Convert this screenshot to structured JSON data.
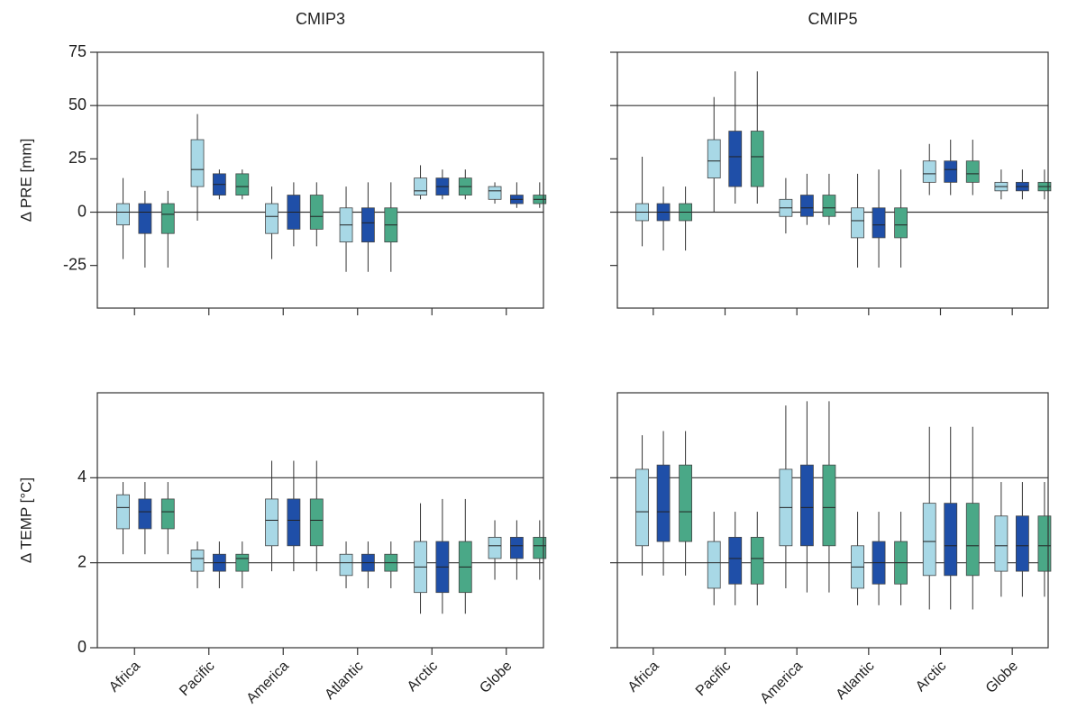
{
  "chart_data": [
    {
      "type": "box",
      "title": "CMIP3",
      "ylabel": "Δ PRE [mm]",
      "categories": [
        null,
        null,
        null,
        null,
        null,
        null
      ],
      "ylim": [
        -45,
        75
      ],
      "yticks": [
        75,
        50,
        25,
        0,
        -25
      ],
      "show_ytick_labels": true,
      "hlines": [
        50,
        0
      ],
      "series": [
        {
          "color": "#a8d8e6",
          "low": [
            -22,
            -4,
            -22,
            -28,
            6,
            4
          ],
          "q1": [
            -6,
            12,
            -10,
            -14,
            8,
            6
          ],
          "median": [
            0,
            20,
            -2,
            -6,
            10,
            10
          ],
          "q3": [
            4,
            34,
            4,
            2,
            16,
            12
          ],
          "high": [
            16,
            46,
            12,
            12,
            22,
            14
          ]
        },
        {
          "color": "#1f4fa8",
          "low": [
            -26,
            6,
            -16,
            -28,
            6,
            2
          ],
          "q1": [
            -10,
            8,
            -8,
            -14,
            8,
            4
          ],
          "median": [
            0,
            13,
            0,
            -5,
            12,
            6
          ],
          "q3": [
            4,
            18,
            8,
            2,
            16,
            8
          ],
          "high": [
            10,
            20,
            14,
            14,
            20,
            14
          ]
        },
        {
          "color": "#4aa887",
          "low": [
            -26,
            6,
            -16,
            -28,
            6,
            2
          ],
          "q1": [
            -10,
            8,
            -8,
            -14,
            8,
            4
          ],
          "median": [
            -1,
            12,
            -2,
            -6,
            12,
            6
          ],
          "q3": [
            4,
            18,
            8,
            2,
            16,
            8
          ],
          "high": [
            10,
            20,
            14,
            14,
            20,
            14
          ]
        }
      ]
    },
    {
      "type": "box",
      "title": "CMIP5",
      "categories": [
        null,
        null,
        null,
        null,
        null,
        null
      ],
      "ylim": [
        -45,
        75
      ],
      "yticks": [
        75,
        50,
        25,
        0,
        -25
      ],
      "show_ytick_labels": false,
      "hlines": [
        50,
        0
      ],
      "series": [
        {
          "color": "#a8d8e6",
          "low": [
            -16,
            0,
            -10,
            -26,
            8,
            6
          ],
          "q1": [
            -4,
            16,
            -2,
            -12,
            14,
            10
          ],
          "median": [
            0,
            24,
            2,
            -4,
            18,
            12
          ],
          "q3": [
            4,
            34,
            6,
            2,
            24,
            14
          ],
          "high": [
            26,
            54,
            16,
            18,
            32,
            20
          ]
        },
        {
          "color": "#1f4fa8",
          "low": [
            -18,
            4,
            -6,
            -26,
            8,
            6
          ],
          "q1": [
            -4,
            12,
            -2,
            -12,
            14,
            10
          ],
          "median": [
            0,
            26,
            2,
            -6,
            20,
            12
          ],
          "q3": [
            4,
            38,
            8,
            2,
            24,
            14
          ],
          "high": [
            12,
            66,
            18,
            20,
            34,
            20
          ]
        },
        {
          "color": "#4aa887",
          "low": [
            -18,
            4,
            -6,
            -26,
            8,
            6
          ],
          "q1": [
            -4,
            12,
            -2,
            -12,
            14,
            10
          ],
          "median": [
            0,
            26,
            2,
            -6,
            18,
            12
          ],
          "q3": [
            4,
            38,
            8,
            2,
            24,
            14
          ],
          "high": [
            12,
            66,
            18,
            20,
            34,
            20
          ]
        }
      ]
    },
    {
      "type": "box",
      "ylabel": "Δ TEMP [°C]",
      "categories": [
        "Africa",
        "Pacific",
        "America",
        "Atlantic",
        "Arctic",
        "Globe"
      ],
      "ylim": [
        0,
        6
      ],
      "yticks": [
        0,
        2,
        4
      ],
      "show_ytick_labels": true,
      "hlines": [
        4,
        2
      ],
      "series": [
        {
          "color": "#a8d8e6",
          "low": [
            2.2,
            1.4,
            1.8,
            1.4,
            0.8,
            1.6
          ],
          "q1": [
            2.8,
            1.8,
            2.4,
            1.7,
            1.3,
            2.1
          ],
          "median": [
            3.3,
            2.1,
            3.0,
            2.0,
            1.9,
            2.4
          ],
          "q3": [
            3.6,
            2.3,
            3.5,
            2.2,
            2.5,
            2.6
          ],
          "high": [
            3.9,
            2.5,
            4.4,
            2.5,
            3.4,
            3.0
          ]
        },
        {
          "color": "#1f4fa8",
          "low": [
            2.2,
            1.4,
            1.8,
            1.4,
            0.8,
            1.6
          ],
          "q1": [
            2.8,
            1.8,
            2.4,
            1.8,
            1.3,
            2.1
          ],
          "median": [
            3.2,
            2.0,
            3.0,
            2.0,
            1.9,
            2.4
          ],
          "q3": [
            3.5,
            2.2,
            3.5,
            2.2,
            2.5,
            2.6
          ],
          "high": [
            3.9,
            2.5,
            4.4,
            2.5,
            3.5,
            3.0
          ]
        },
        {
          "color": "#4aa887",
          "low": [
            2.2,
            1.4,
            1.8,
            1.4,
            0.8,
            1.6
          ],
          "q1": [
            2.8,
            1.8,
            2.4,
            1.8,
            1.3,
            2.1
          ],
          "median": [
            3.2,
            2.1,
            3.0,
            2.0,
            1.9,
            2.4
          ],
          "q3": [
            3.5,
            2.2,
            3.5,
            2.2,
            2.5,
            2.6
          ],
          "high": [
            3.9,
            2.5,
            4.4,
            2.5,
            3.5,
            3.0
          ]
        }
      ]
    },
    {
      "type": "box",
      "categories": [
        "Africa",
        "Pacific",
        "America",
        "Atlantic",
        "Arctic",
        "Globe"
      ],
      "ylim": [
        0,
        6
      ],
      "yticks": [
        0,
        2,
        4
      ],
      "show_ytick_labels": false,
      "hlines": [
        4,
        2
      ],
      "series": [
        {
          "color": "#a8d8e6",
          "low": [
            1.7,
            1.0,
            1.4,
            1.0,
            0.9,
            1.2
          ],
          "q1": [
            2.4,
            1.4,
            2.4,
            1.4,
            1.7,
            1.8
          ],
          "median": [
            3.2,
            2.0,
            3.3,
            1.9,
            2.5,
            2.4
          ],
          "q3": [
            4.2,
            2.5,
            4.2,
            2.4,
            3.4,
            3.1
          ],
          "high": [
            5.0,
            3.2,
            5.7,
            3.2,
            5.2,
            3.9
          ]
        },
        {
          "color": "#1f4fa8",
          "low": [
            1.7,
            1.0,
            1.3,
            1.0,
            0.9,
            1.2
          ],
          "q1": [
            2.5,
            1.5,
            2.4,
            1.5,
            1.7,
            1.8
          ],
          "median": [
            3.2,
            2.1,
            3.3,
            2.0,
            2.4,
            2.4
          ],
          "q3": [
            4.3,
            2.6,
            4.3,
            2.5,
            3.4,
            3.1
          ],
          "high": [
            5.1,
            3.2,
            5.8,
            3.2,
            5.2,
            3.9
          ]
        },
        {
          "color": "#4aa887",
          "low": [
            1.7,
            1.0,
            1.3,
            1.0,
            0.9,
            1.2
          ],
          "q1": [
            2.5,
            1.5,
            2.4,
            1.5,
            1.7,
            1.8
          ],
          "median": [
            3.2,
            2.1,
            3.3,
            2.0,
            2.4,
            2.4
          ],
          "q3": [
            4.3,
            2.6,
            4.3,
            2.5,
            3.4,
            3.1
          ],
          "high": [
            5.1,
            3.2,
            5.8,
            3.2,
            5.2,
            3.9
          ]
        }
      ]
    }
  ]
}
